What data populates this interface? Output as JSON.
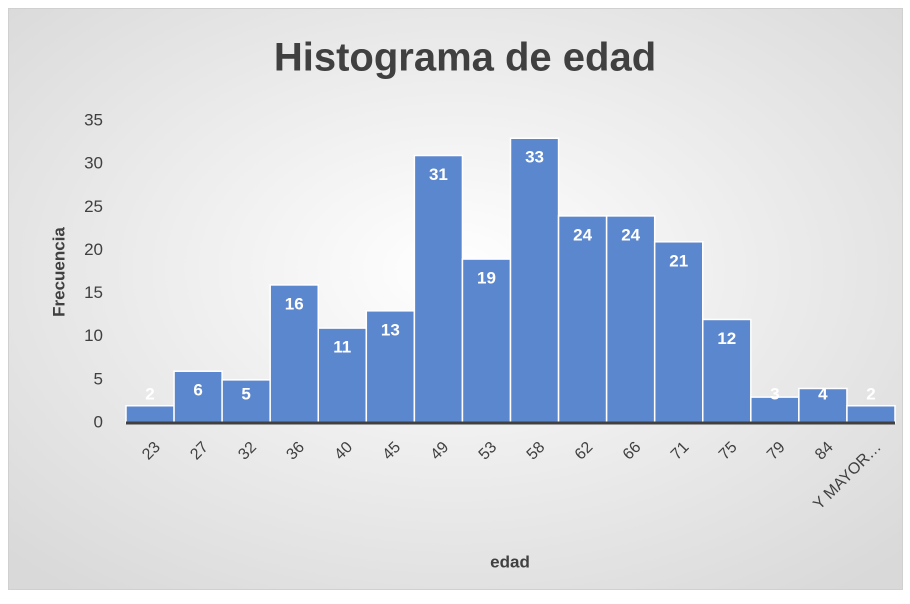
{
  "chart_data": {
    "type": "bar",
    "title": "Histograma  de edad",
    "x_label": "edad",
    "y_label": "Frecuencia",
    "categories": [
      "23",
      "27",
      "32",
      "36",
      "40",
      "45",
      "49",
      "53",
      "58",
      "62",
      "66",
      "71",
      "75",
      "79",
      "84",
      "Y MAYOR…"
    ],
    "values": [
      2,
      6,
      5,
      16,
      11,
      13,
      31,
      19,
      33,
      24,
      24,
      21,
      12,
      3,
      4,
      2
    ],
    "color": "#5b87cf",
    "ylim": [
      0,
      35
    ],
    "yticks": [
      0,
      5,
      10,
      15,
      20,
      25,
      30,
      35
    ],
    "grid": false
  }
}
